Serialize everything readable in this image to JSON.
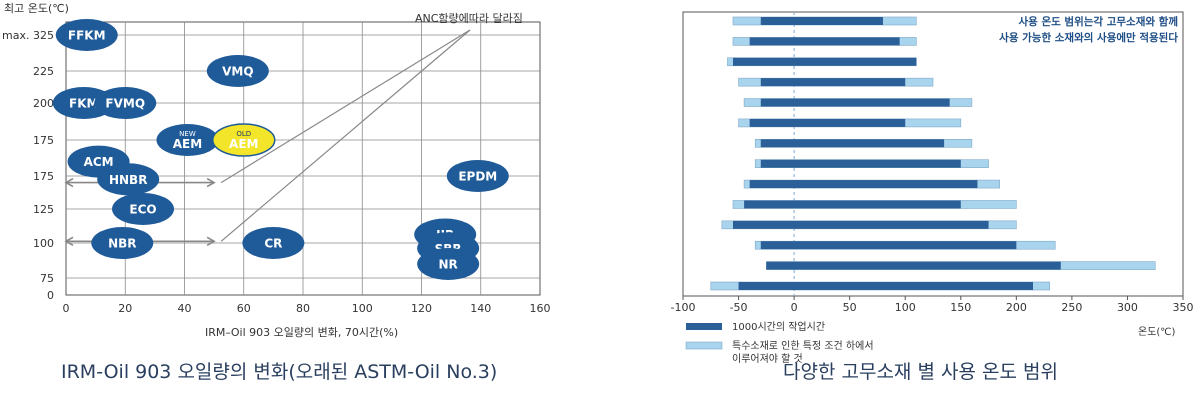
{
  "chart_data": [
    {
      "type": "scatter",
      "title": "",
      "xlabel": "IRM–Oil 903 오일량의 변화, 70시간(%)",
      "ylabel": "최고 온도(℃)",
      "x_ticks": [
        0,
        20,
        40,
        60,
        80,
        100,
        120,
        140,
        160
      ],
      "y_ticks": [
        "max. 325",
        "225",
        "200",
        "175",
        "175",
        "125",
        "100",
        "75",
        "0"
      ],
      "xlim": [
        0,
        160
      ],
      "grid": true,
      "annotation": "ANC함량에따라 달라짐",
      "caption": "IRM-Oil 903 오일량의 변화(오래된 ASTM-Oil No.3)",
      "colors": {
        "oval": "#1f5b99",
        "highlight": "#f3e62a"
      },
      "points": [
        {
          "label": "FFKM",
          "x": 7,
          "row": 0
        },
        {
          "label": "VMQ",
          "x": 58,
          "row": 1
        },
        {
          "label": "FKM",
          "x": 6,
          "row": 2
        },
        {
          "label": "FVMQ",
          "x": 20,
          "row": 2
        },
        {
          "label": "AEM",
          "sup": "NEW",
          "x": 41,
          "row": 3
        },
        {
          "label": "AEM",
          "sup": "OLD",
          "x": 60,
          "row": 3,
          "highlight": true
        },
        {
          "label": "ACM",
          "x": 11,
          "row": 3.6
        },
        {
          "label": "HNBR",
          "x": 21,
          "row": 4.1
        },
        {
          "label": "EPDM",
          "x": 139,
          "row": 4
        },
        {
          "label": "ECO",
          "x": 26,
          "row": 5
        },
        {
          "label": "NBR",
          "x": 19,
          "row": 6
        },
        {
          "label": "CR",
          "x": 70,
          "row": 6
        },
        {
          "label": "IIR",
          "x": 128,
          "row": 5.75
        },
        {
          "label": "SBR",
          "x": 129,
          "row": 6.15
        },
        {
          "label": "NR",
          "x": 129,
          "row": 6.6
        }
      ],
      "arrows": [
        {
          "y_row": 4.2,
          "x_from": 0,
          "x_to": 50
        },
        {
          "y_row": 5.95,
          "x_from": 0,
          "x_to": 50
        }
      ]
    },
    {
      "type": "bar",
      "title": "",
      "xlabel": "온도(℃)",
      "xlim": [
        -100,
        350
      ],
      "x_ticks": [
        -100,
        -50,
        0,
        50,
        100,
        150,
        200,
        250,
        300,
        350
      ],
      "annotation": "사용 온도 범위는각 고무소재와 함께\n사용 가능한 소재와의 사용에만 적용된다",
      "caption": "다양한 고무소재 별 사용 온도 범위",
      "legend": [
        "1000시간의 작업시간",
        "특수소재로 인한 특정 조건 하에서\n이루어져야 할 것"
      ],
      "colors": {
        "solid": "#2a5f97",
        "light": "#a9d4ee"
      },
      "series": [
        {
          "name": "1000시간의 작업시간",
          "ranges": [
            [
              -30,
              80
            ],
            [
              -40,
              95
            ],
            [
              -55,
              110
            ],
            [
              -30,
              100
            ],
            [
              -30,
              140
            ],
            [
              -40,
              100
            ],
            [
              -30,
              135
            ],
            [
              -30,
              150
            ],
            [
              -40,
              165
            ],
            [
              -45,
              150
            ],
            [
              -55,
              175
            ],
            [
              -30,
              200
            ],
            [
              -25,
              240
            ],
            [
              -50,
              215
            ]
          ]
        },
        {
          "name": "특수소재로 인한 특정 조건 하에서 이루어져야 할 것",
          "ranges": [
            [
              -55,
              110
            ],
            [
              -55,
              110
            ],
            [
              -60,
              110
            ],
            [
              -50,
              125
            ],
            [
              -45,
              160
            ],
            [
              -50,
              150
            ],
            [
              -35,
              160
            ],
            [
              -35,
              175
            ],
            [
              -45,
              185
            ],
            [
              -55,
              200
            ],
            [
              -65,
              200
            ],
            [
              -35,
              235
            ],
            [
              -25,
              325
            ],
            [
              -75,
              230
            ]
          ]
        }
      ]
    }
  ]
}
